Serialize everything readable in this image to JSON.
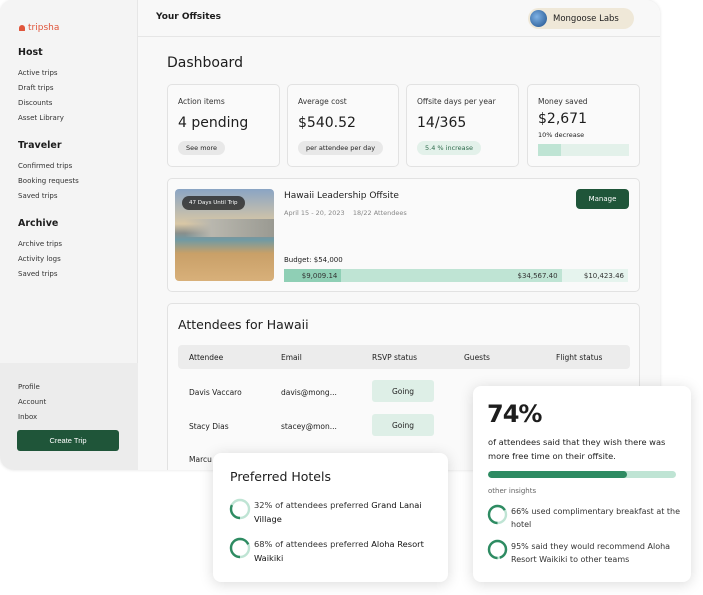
{
  "brand": "tripsha",
  "header": {
    "title": "Your Offsites",
    "org": "Mongoose Labs"
  },
  "sidebar": {
    "sections": [
      {
        "title": "Host",
        "items": [
          "Active trips",
          "Draft trips",
          "Discounts",
          "Asset Library"
        ]
      },
      {
        "title": "Traveler",
        "items": [
          "Confirmed trips",
          "Booking requests",
          "Saved trips"
        ]
      },
      {
        "title": "Archive",
        "items": [
          "Archive trips",
          "Activity logs",
          "Saved trips"
        ]
      }
    ],
    "bottom": [
      "Profile",
      "Account",
      "Inbox"
    ],
    "create": "Create Trip"
  },
  "dashboard": {
    "title": "Dashboard",
    "stats": [
      {
        "label": "Action items",
        "value": "4 pending",
        "pill": "See more"
      },
      {
        "label": "Average cost",
        "value": "$540.52",
        "pill": "per attendee per day"
      },
      {
        "label": "Offsite days per year",
        "value": "14/365",
        "pill": "5.4 % increase"
      },
      {
        "label": "Money saved",
        "value": "$2,671",
        "sub": "10% decrease",
        "progress": 0.25
      }
    ]
  },
  "trip": {
    "badge": "47 Days Until Trip",
    "name": "Hawaii Leadership Offsite",
    "dates": "April 15 - 20, 2023",
    "attendees": "18/22 Attendees",
    "manage": "Manage",
    "budget": "Budget: $54,000",
    "segments": [
      {
        "label": "$9,009.14",
        "value": 9009.14,
        "color": "#8fcfb5"
      },
      {
        "label": "$34,567.40",
        "value": 34567.4,
        "color": "#bfe4d4"
      },
      {
        "label": "$10,423.46",
        "value": 10423.46,
        "color": "#e6f4ee"
      }
    ]
  },
  "attendees": {
    "title": "Attendees for Hawaii",
    "columns": [
      "Attendee",
      "Email",
      "RSVP status",
      "Guests",
      "Flight status"
    ],
    "rows": [
      {
        "name": "Davis Vaccaro",
        "email": "davis@mong...",
        "rsvp": "Going"
      },
      {
        "name": "Stacy Dias",
        "email": "stacey@mon...",
        "rsvp": "Going"
      },
      {
        "name": "Marcu",
        "email": "",
        "rsvp": ""
      }
    ]
  },
  "hotels": {
    "title": "Preferred Hotels",
    "items": [
      {
        "text": "32% of attendees preferred ",
        "hotel": "Grand Lanai Village",
        "pct": 32
      },
      {
        "text": "68% of attendees preferred ",
        "hotel": "Aloha Resort Waikiki",
        "pct": 68
      }
    ]
  },
  "insight": {
    "big": "74%",
    "text": "of attendees said that they wish there was more free time on their offsite.",
    "pct": 74,
    "other": "other insights",
    "items": [
      {
        "text": "66% used complimentary breakfast at the hotel",
        "pct": 66
      },
      {
        "text": "95% said they would recommend Aloha Resort Waikiki to other teams",
        "pct": 95
      }
    ]
  },
  "colors": {
    "primary": "#1f5539",
    "accent": "#2e8b62",
    "brand": "#e0553b"
  }
}
